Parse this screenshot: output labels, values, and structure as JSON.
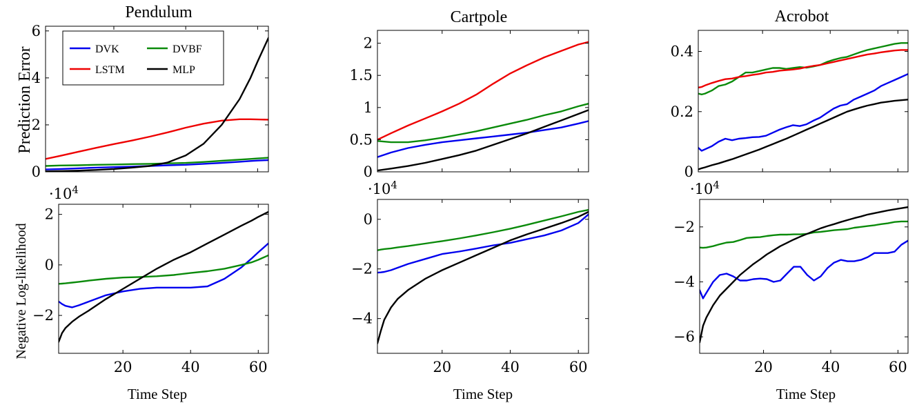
{
  "colors": {
    "DVK": "#0000ee",
    "DVBF": "#0a8a0a",
    "LSTM": "#ee0000",
    "MLP": "#000000"
  },
  "legend": {
    "entries": [
      "DVK",
      "DVBF",
      "LSTM",
      "MLP"
    ],
    "placement": "top-left",
    "panel": "Pendulum prediction error"
  },
  "chart_data": [
    {
      "type": "line",
      "title": "Pendulum",
      "ylabel": "Prediction Error",
      "xlabel": "",
      "xlim": [
        1,
        63
      ],
      "ylim": [
        0,
        6.2
      ],
      "yticks": [
        0,
        2,
        4,
        6
      ],
      "xticks": [
        20,
        40,
        60
      ],
      "show_xticklabels": false,
      "multiplier": "",
      "x": [
        1,
        5,
        10,
        15,
        20,
        25,
        30,
        35,
        40,
        45,
        50,
        55,
        58,
        60,
        63
      ],
      "series": [
        {
          "name": "DVK",
          "values": [
            0.1,
            0.12,
            0.15,
            0.18,
            0.2,
            0.22,
            0.25,
            0.28,
            0.3,
            0.34,
            0.38,
            0.43,
            0.46,
            0.48,
            0.5
          ]
        },
        {
          "name": "DVBF",
          "values": [
            0.25,
            0.27,
            0.28,
            0.3,
            0.31,
            0.33,
            0.34,
            0.36,
            0.38,
            0.42,
            0.47,
            0.52,
            0.55,
            0.57,
            0.6
          ]
        },
        {
          "name": "LSTM",
          "values": [
            0.55,
            0.68,
            0.85,
            1.02,
            1.18,
            1.33,
            1.5,
            1.68,
            1.88,
            2.05,
            2.18,
            2.24,
            2.24,
            2.23,
            2.22
          ]
        },
        {
          "name": "MLP",
          "values": [
            0.02,
            0.03,
            0.05,
            0.08,
            0.12,
            0.18,
            0.25,
            0.4,
            0.7,
            1.2,
            2.0,
            3.1,
            4.0,
            4.7,
            5.7
          ]
        }
      ]
    },
    {
      "type": "line",
      "title": "Cartpole",
      "ylabel": "",
      "xlabel": "",
      "xlim": [
        1,
        63
      ],
      "ylim": [
        0,
        2.2
      ],
      "yticks": [
        0,
        0.5,
        1,
        1.5,
        2
      ],
      "xticks": [
        20,
        40,
        60
      ],
      "show_xticklabels": false,
      "multiplier": "",
      "x": [
        1,
        5,
        10,
        15,
        20,
        25,
        30,
        35,
        40,
        45,
        50,
        55,
        60,
        63
      ],
      "series": [
        {
          "name": "DVK",
          "values": [
            0.23,
            0.3,
            0.37,
            0.42,
            0.46,
            0.49,
            0.52,
            0.55,
            0.58,
            0.61,
            0.65,
            0.69,
            0.75,
            0.79
          ]
        },
        {
          "name": "DVBF",
          "values": [
            0.48,
            0.46,
            0.46,
            0.49,
            0.53,
            0.58,
            0.63,
            0.69,
            0.75,
            0.81,
            0.88,
            0.94,
            1.02,
            1.06
          ]
        },
        {
          "name": "LSTM",
          "values": [
            0.5,
            0.6,
            0.72,
            0.83,
            0.94,
            1.06,
            1.2,
            1.37,
            1.53,
            1.66,
            1.78,
            1.88,
            1.98,
            2.02
          ]
        },
        {
          "name": "MLP",
          "values": [
            0.02,
            0.05,
            0.09,
            0.14,
            0.2,
            0.26,
            0.33,
            0.42,
            0.51,
            0.6,
            0.7,
            0.8,
            0.9,
            0.96
          ]
        }
      ]
    },
    {
      "type": "line",
      "title": "Acrobot",
      "ylabel": "",
      "xlabel": "",
      "xlim": [
        1,
        63
      ],
      "ylim": [
        0,
        0.47
      ],
      "yticks": [
        0,
        0.2,
        0.4
      ],
      "xticks": [
        20,
        40,
        60
      ],
      "show_xticklabels": false,
      "multiplier": "",
      "x": [
        1,
        2,
        3,
        5,
        7,
        9,
        11,
        13,
        15,
        17,
        19,
        21,
        23,
        25,
        27,
        29,
        31,
        33,
        35,
        37,
        39,
        41,
        43,
        45,
        47,
        49,
        51,
        53,
        55,
        57,
        59,
        61,
        63
      ],
      "series": [
        {
          "name": "DVK",
          "values": [
            0.08,
            0.07,
            0.075,
            0.085,
            0.1,
            0.11,
            0.105,
            0.11,
            0.112,
            0.115,
            0.116,
            0.12,
            0.13,
            0.14,
            0.148,
            0.155,
            0.152,
            0.158,
            0.17,
            0.18,
            0.195,
            0.21,
            0.22,
            0.225,
            0.24,
            0.25,
            0.26,
            0.27,
            0.285,
            0.295,
            0.305,
            0.315,
            0.325
          ]
        },
        {
          "name": "DVBF",
          "values": [
            0.26,
            0.257,
            0.26,
            0.27,
            0.285,
            0.29,
            0.3,
            0.315,
            0.33,
            0.33,
            0.335,
            0.34,
            0.345,
            0.345,
            0.342,
            0.345,
            0.348,
            0.346,
            0.35,
            0.355,
            0.365,
            0.372,
            0.378,
            0.382,
            0.39,
            0.398,
            0.405,
            0.41,
            0.415,
            0.42,
            0.425,
            0.428,
            0.428
          ]
        },
        {
          "name": "LSTM",
          "values": [
            0.28,
            0.282,
            0.287,
            0.295,
            0.302,
            0.308,
            0.31,
            0.315,
            0.318,
            0.322,
            0.325,
            0.33,
            0.332,
            0.336,
            0.338,
            0.34,
            0.343,
            0.348,
            0.352,
            0.355,
            0.36,
            0.365,
            0.37,
            0.375,
            0.38,
            0.385,
            0.39,
            0.393,
            0.397,
            0.4,
            0.403,
            0.405,
            0.405
          ]
        },
        {
          "name": "MLP",
          "values": [
            0.008,
            0.012,
            0.015,
            0.022,
            0.028,
            0.035,
            0.042,
            0.05,
            0.058,
            0.066,
            0.074,
            0.083,
            0.092,
            0.101,
            0.11,
            0.12,
            0.13,
            0.14,
            0.15,
            0.16,
            0.17,
            0.18,
            0.19,
            0.2,
            0.207,
            0.214,
            0.22,
            0.225,
            0.23,
            0.233,
            0.236,
            0.238,
            0.24
          ]
        }
      ]
    },
    {
      "type": "line",
      "title": "",
      "ylabel": "Negative Log-likelihood",
      "xlabel": "Time Step",
      "xlim": [
        1,
        63
      ],
      "ylim": [
        -3.5,
        2.4
      ],
      "yticks": [
        -2,
        0,
        2
      ],
      "xticks": [
        20,
        40,
        60
      ],
      "show_xticklabels": true,
      "multiplier": "·10^4",
      "x": [
        1,
        2,
        3,
        5,
        7,
        10,
        15,
        20,
        25,
        30,
        35,
        40,
        45,
        50,
        55,
        58,
        60,
        63
      ],
      "series": [
        {
          "name": "DVK",
          "values": [
            -1.45,
            -1.55,
            -1.62,
            -1.68,
            -1.6,
            -1.45,
            -1.2,
            -1.05,
            -0.95,
            -0.9,
            -0.9,
            -0.9,
            -0.85,
            -0.55,
            -0.1,
            0.25,
            0.5,
            0.85
          ]
        },
        {
          "name": "DVBF",
          "values": [
            -0.75,
            -0.74,
            -0.73,
            -0.7,
            -0.67,
            -0.62,
            -0.55,
            -0.5,
            -0.48,
            -0.45,
            -0.4,
            -0.32,
            -0.25,
            -0.15,
            0.0,
            0.1,
            0.2,
            0.38
          ]
        },
        {
          "name": "MLP",
          "values": [
            -3.05,
            -2.7,
            -2.5,
            -2.25,
            -2.05,
            -1.8,
            -1.35,
            -0.95,
            -0.55,
            -0.15,
            0.2,
            0.5,
            0.85,
            1.2,
            1.55,
            1.75,
            1.9,
            2.1
          ]
        }
      ]
    },
    {
      "type": "line",
      "title": "",
      "ylabel": "",
      "xlabel": "Time Step",
      "xlim": [
        1,
        63
      ],
      "ylim": [
        -5.4,
        0.8
      ],
      "yticks": [
        -4,
        -2,
        0
      ],
      "xticks": [
        20,
        40,
        60
      ],
      "show_xticklabels": true,
      "multiplier": "·10^4",
      "x": [
        1,
        2,
        3,
        5,
        7,
        10,
        15,
        20,
        25,
        30,
        35,
        40,
        45,
        50,
        55,
        60,
        63
      ],
      "series": [
        {
          "name": "DVK",
          "values": [
            -2.15,
            -2.14,
            -2.12,
            -2.05,
            -1.95,
            -1.8,
            -1.6,
            -1.4,
            -1.3,
            -1.18,
            -1.05,
            -0.95,
            -0.8,
            -0.65,
            -0.45,
            -0.15,
            0.2
          ]
        },
        {
          "name": "DVBF",
          "values": [
            -1.25,
            -1.22,
            -1.2,
            -1.17,
            -1.13,
            -1.08,
            -0.98,
            -0.88,
            -0.77,
            -0.65,
            -0.52,
            -0.38,
            -0.22,
            -0.05,
            0.12,
            0.3,
            0.38
          ]
        },
        {
          "name": "MLP",
          "values": [
            -5.0,
            -4.5,
            -4.05,
            -3.55,
            -3.2,
            -2.85,
            -2.4,
            -2.05,
            -1.75,
            -1.45,
            -1.15,
            -0.85,
            -0.6,
            -0.38,
            -0.15,
            0.1,
            0.3
          ]
        }
      ]
    },
    {
      "type": "line",
      "title": "",
      "ylabel": "",
      "xlabel": "Time Step",
      "xlim": [
        1,
        63
      ],
      "ylim": [
        -6.6,
        -1.0
      ],
      "yticks": [
        -6,
        -4,
        -2
      ],
      "xticks": [
        20,
        40,
        60
      ],
      "show_xticklabels": true,
      "multiplier": "·10^4",
      "x": [
        1,
        2,
        3,
        5,
        7,
        9,
        11,
        13,
        15,
        17,
        19,
        21,
        23,
        25,
        27,
        29,
        31,
        33,
        35,
        37,
        39,
        41,
        43,
        45,
        47,
        49,
        51,
        53,
        55,
        57,
        59,
        61,
        63
      ],
      "series": [
        {
          "name": "DVK",
          "values": [
            -4.3,
            -4.6,
            -4.4,
            -4.0,
            -3.75,
            -3.7,
            -3.8,
            -3.95,
            -3.95,
            -3.9,
            -3.88,
            -3.9,
            -4.0,
            -3.95,
            -3.7,
            -3.45,
            -3.45,
            -3.75,
            -3.95,
            -3.8,
            -3.5,
            -3.3,
            -3.2,
            -3.25,
            -3.25,
            -3.2,
            -3.1,
            -2.95,
            -2.95,
            -2.95,
            -2.9,
            -2.65,
            -2.5
          ]
        },
        {
          "name": "DVBF",
          "values": [
            -2.75,
            -2.76,
            -2.75,
            -2.7,
            -2.63,
            -2.57,
            -2.55,
            -2.48,
            -2.4,
            -2.38,
            -2.37,
            -2.33,
            -2.3,
            -2.28,
            -2.28,
            -2.27,
            -2.27,
            -2.25,
            -2.2,
            -2.18,
            -2.15,
            -2.12,
            -2.1,
            -2.08,
            -2.03,
            -2.0,
            -1.97,
            -1.94,
            -1.9,
            -1.87,
            -1.82,
            -1.8,
            -1.8
          ]
        },
        {
          "name": "MLP",
          "values": [
            -6.2,
            -5.6,
            -5.3,
            -4.85,
            -4.5,
            -4.25,
            -4.0,
            -3.75,
            -3.55,
            -3.35,
            -3.18,
            -3.0,
            -2.85,
            -2.7,
            -2.58,
            -2.46,
            -2.35,
            -2.25,
            -2.15,
            -2.05,
            -1.97,
            -1.9,
            -1.82,
            -1.75,
            -1.68,
            -1.62,
            -1.55,
            -1.5,
            -1.45,
            -1.4,
            -1.36,
            -1.32,
            -1.28
          ]
        }
      ]
    }
  ]
}
